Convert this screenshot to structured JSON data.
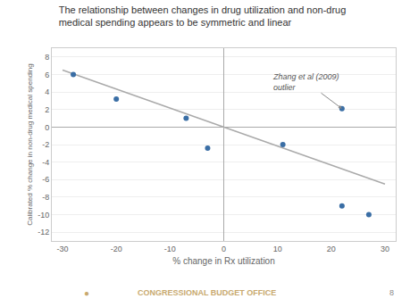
{
  "chart_data": {
    "type": "scatter",
    "title": "The relationship between changes in drug utilization and non-drug\nmedical spending appears to be symmetric and linear",
    "xlabel": "% change in Rx utilization",
    "ylabel": "Calibrated % change in non-drug medical spending",
    "series": [
      {
        "type": "scatter",
        "marker": "circle",
        "color": "#3a6ea5",
        "x": [
          -28,
          -20,
          -7,
          -3,
          11,
          22,
          22,
          27
        ],
        "values": [
          6.0,
          3.2,
          1.0,
          -2.4,
          -2.0,
          2.1,
          -9.0,
          -10.0
        ]
      },
      {
        "type": "line",
        "line_style": "solid",
        "color": "#aaaaaa",
        "x": [
          -30,
          30
        ],
        "values": [
          6.5,
          -6.5
        ]
      }
    ],
    "xlim": [
      -32,
      32
    ],
    "ylim": [
      -13,
      9
    ],
    "xticks": [
      -30,
      -20,
      -10,
      0,
      10,
      20,
      30
    ],
    "yticks": [
      -12,
      -10,
      -8,
      -6,
      -4,
      -2,
      0,
      2,
      4,
      6,
      8
    ],
    "grid": "y",
    "annotations": [
      {
        "text": "Zhang et al (2009)\noutlier",
        "x": 22,
        "y": 2.1
      }
    ],
    "footer": "CONGRESSIONAL BUDGET OFFICE",
    "footer_icon": "●",
    "footer_color": "#c8a96e",
    "page_number": 8
  }
}
